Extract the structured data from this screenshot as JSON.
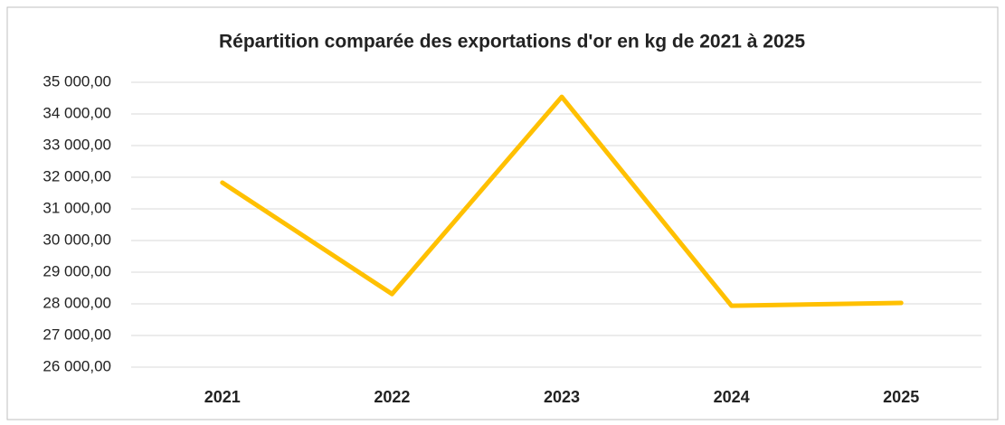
{
  "chart_data": {
    "type": "line",
    "title": "Répartition comparée des exportations d'or en kg de 2021 à 2025",
    "categories": [
      "2021",
      "2022",
      "2023",
      "2024",
      "2025"
    ],
    "series": [
      {
        "name": "Exportations d'or (kg)",
        "color": "#ffc000",
        "values": [
          31830,
          28310,
          34540,
          27940,
          28030
        ]
      }
    ],
    "ylim": [
      26000,
      35000
    ],
    "yticks": [
      {
        "value": 26000,
        "label": "26 000,00"
      },
      {
        "value": 27000,
        "label": "27 000,00"
      },
      {
        "value": 28000,
        "label": "28 000,00"
      },
      {
        "value": 29000,
        "label": "29 000,00"
      },
      {
        "value": 30000,
        "label": "30 000,00"
      },
      {
        "value": 31000,
        "label": "31 000,00"
      },
      {
        "value": 32000,
        "label": "32 000,00"
      },
      {
        "value": 33000,
        "label": "33 000,00"
      },
      {
        "value": 34000,
        "label": "34 000,00"
      },
      {
        "value": 35000,
        "label": "35 000,00"
      }
    ],
    "grid": true,
    "legend": false
  }
}
